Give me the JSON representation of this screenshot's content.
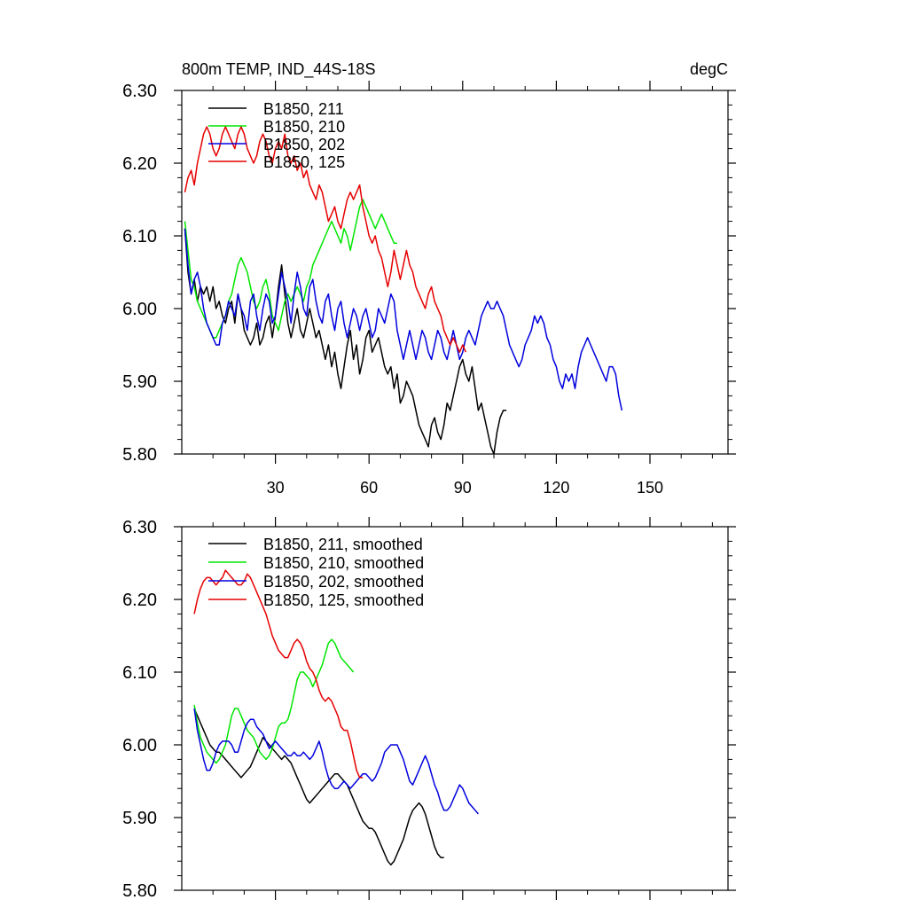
{
  "colors": {
    "black": "#000000",
    "green": "#00e600",
    "blue": "#0000dd",
    "red": "#e60000"
  },
  "chart_data": [
    {
      "type": "line",
      "title": "800m TEMP, IND_44S-18S",
      "units": "degC",
      "xlim": [
        0,
        175
      ],
      "ylim": [
        5.8,
        6.3
      ],
      "xticks": [
        30,
        60,
        90,
        120,
        150
      ],
      "xtick_labels": [
        "30",
        "60",
        "90",
        "120",
        "150"
      ],
      "yticks": [
        5.8,
        5.9,
        6.0,
        6.1,
        6.2,
        6.3
      ],
      "ytick_labels": [
        "5.80",
        "5.90",
        "6.00",
        "6.10",
        "6.20",
        "6.30"
      ],
      "legend_position": "top-left",
      "series": [
        {
          "name": "B1850, 211",
          "color": "black",
          "start": 1,
          "values": [
            6.11,
            6.05,
            6.02,
            6.04,
            6.01,
            6.03,
            6.02,
            6.03,
            6.01,
            6.03,
            6.0,
            6.01,
            5.99,
            5.98,
            6.0,
            6.01,
            5.98,
            6.02,
            6.0,
            5.97,
            5.96,
            5.95,
            5.96,
            5.98,
            5.95,
            5.96,
            5.98,
            5.99,
            5.96,
            5.99,
            6.03,
            6.06,
            6.02,
            5.98,
            5.96,
            5.98,
            6.0,
            5.97,
            5.96,
            5.98,
            6.0,
            5.98,
            5.96,
            5.97,
            5.95,
            5.93,
            5.95,
            5.92,
            5.94,
            5.91,
            5.89,
            5.92,
            5.95,
            5.97,
            5.93,
            5.95,
            5.91,
            5.93,
            5.96,
            5.97,
            5.94,
            5.95,
            5.96,
            5.94,
            5.92,
            5.91,
            5.92,
            5.89,
            5.91,
            5.87,
            5.88,
            5.9,
            5.89,
            5.88,
            5.86,
            5.84,
            5.83,
            5.82,
            5.81,
            5.84,
            5.85,
            5.83,
            5.82,
            5.84,
            5.87,
            5.86,
            5.88,
            5.9,
            5.92,
            5.93,
            5.91,
            5.9,
            5.92,
            5.89,
            5.86,
            5.87,
            5.85,
            5.83,
            5.81,
            5.8,
            5.83,
            5.85,
            5.86,
            5.86
          ]
        },
        {
          "name": "B1850, 210",
          "color": "green",
          "start": 1,
          "values": [
            6.12,
            6.08,
            6.04,
            6.03,
            6.01,
            6.0,
            5.99,
            5.98,
            5.97,
            5.96,
            5.96,
            5.97,
            5.98,
            5.99,
            6.01,
            6.02,
            6.04,
            6.06,
            6.07,
            6.06,
            6.05,
            6.03,
            6.01,
            6.0,
            6.01,
            6.03,
            6.04,
            6.02,
            5.99,
            5.98,
            5.97,
            5.99,
            6.01,
            6.02,
            6.01,
            6.02,
            6.03,
            6.02,
            6.01,
            6.03,
            6.04,
            6.06,
            6.07,
            6.08,
            6.09,
            6.1,
            6.11,
            6.12,
            6.11,
            6.1,
            6.09,
            6.11,
            6.1,
            6.08,
            6.1,
            6.12,
            6.14,
            6.15,
            6.14,
            6.13,
            6.12,
            6.11,
            6.12,
            6.13,
            6.12,
            6.11,
            6.1,
            6.09,
            6.09
          ]
        },
        {
          "name": "B1850, 202",
          "color": "blue",
          "start": 1,
          "values": [
            6.11,
            6.06,
            6.02,
            6.04,
            6.05,
            6.03,
            6.0,
            5.98,
            5.97,
            5.96,
            5.95,
            5.95,
            5.98,
            5.99,
            6.01,
            6.0,
            5.99,
            6.02,
            6.0,
            5.99,
            5.97,
            6.01,
            6.02,
            5.99,
            5.97,
            6.0,
            6.02,
            6.01,
            5.98,
            5.99,
            6.02,
            6.05,
            6.03,
            6.01,
            5.98,
            6.02,
            6.05,
            6.03,
            6.0,
            5.99,
            6.03,
            6.04,
            6.01,
            5.99,
            5.98,
            6.01,
            6.02,
            5.99,
            5.97,
            6.0,
            6.01,
            5.98,
            5.96,
            5.98,
            6.0,
            5.99,
            5.97,
            5.99,
            6.0,
            5.98,
            5.96,
            5.97,
            6.0,
            5.99,
            5.98,
            6.0,
            6.02,
            6.01,
            5.97,
            5.95,
            5.93,
            5.95,
            5.97,
            5.95,
            5.93,
            5.95,
            5.97,
            5.96,
            5.94,
            5.93,
            5.95,
            5.97,
            5.96,
            5.94,
            5.93,
            5.95,
            5.97,
            5.95,
            5.93,
            5.94,
            5.96,
            5.97,
            5.96,
            5.95,
            5.97,
            5.99,
            6.0,
            6.01,
            6.0,
            6.0,
            6.01,
            6.0,
            5.99,
            5.97,
            5.95,
            5.94,
            5.93,
            5.92,
            5.93,
            5.95,
            5.96,
            5.97,
            5.99,
            5.98,
            5.99,
            5.98,
            5.96,
            5.95,
            5.93,
            5.92,
            5.9,
            5.89,
            5.91,
            5.9,
            5.91,
            5.89,
            5.92,
            5.94,
            5.95,
            5.96,
            5.95,
            5.94,
            5.93,
            5.92,
            5.91,
            5.9,
            5.92,
            5.92,
            5.91,
            5.88,
            5.86
          ]
        },
        {
          "name": "B1850, 125",
          "color": "red",
          "start": 1,
          "values": [
            6.16,
            6.18,
            6.19,
            6.17,
            6.2,
            6.22,
            6.24,
            6.25,
            6.24,
            6.22,
            6.21,
            6.22,
            6.24,
            6.25,
            6.24,
            6.23,
            6.22,
            6.24,
            6.25,
            6.24,
            6.22,
            6.21,
            6.2,
            6.21,
            6.23,
            6.24,
            6.23,
            6.21,
            6.2,
            6.22,
            6.23,
            6.22,
            6.24,
            6.21,
            6.2,
            6.21,
            6.19,
            6.2,
            6.18,
            6.19,
            6.17,
            6.16,
            6.15,
            6.17,
            6.16,
            6.14,
            6.12,
            6.13,
            6.14,
            6.12,
            6.11,
            6.13,
            6.15,
            6.16,
            6.15,
            6.16,
            6.17,
            6.14,
            6.12,
            6.1,
            6.09,
            6.1,
            6.08,
            6.07,
            6.05,
            6.03,
            6.05,
            6.08,
            6.06,
            6.04,
            6.06,
            6.08,
            6.06,
            6.05,
            6.03,
            6.02,
            6.01,
            6.0,
            6.02,
            6.03,
            6.01,
            6.0,
            5.99,
            5.97,
            5.96,
            5.95,
            5.96,
            5.95,
            5.94,
            5.95,
            5.94
          ]
        }
      ]
    },
    {
      "type": "line",
      "xlim": [
        0,
        175
      ],
      "ylim": [
        5.8,
        6.3
      ],
      "xticks": [
        30,
        60,
        90,
        120,
        150
      ],
      "yticks": [
        5.8,
        5.9,
        6.0,
        6.1,
        6.2,
        6.3
      ],
      "ytick_labels": [
        "5.80",
        "5.90",
        "6.00",
        "6.10",
        "6.20",
        "6.30"
      ],
      "legend_position": "top-left",
      "series": [
        {
          "name": "B1850, 211, smoothed",
          "color": "black",
          "start": 4,
          "values": [
            6.05,
            6.04,
            6.03,
            6.02,
            6.01,
            6.0,
            5.995,
            5.99,
            5.99,
            5.985,
            5.98,
            5.975,
            5.97,
            5.965,
            5.96,
            5.955,
            5.96,
            5.965,
            5.97,
            5.98,
            5.99,
            6.0,
            6.01,
            6.005,
            6.0,
            5.995,
            5.99,
            5.985,
            5.98,
            5.985,
            5.98,
            5.975,
            5.965,
            5.955,
            5.945,
            5.935,
            5.925,
            5.92,
            5.925,
            5.93,
            5.935,
            5.94,
            5.945,
            5.95,
            5.955,
            5.96,
            5.96,
            5.955,
            5.95,
            5.945,
            5.935,
            5.925,
            5.915,
            5.905,
            5.895,
            5.89,
            5.885,
            5.885,
            5.88,
            5.87,
            5.86,
            5.85,
            5.84,
            5.835,
            5.84,
            5.85,
            5.86,
            5.87,
            5.885,
            5.9,
            5.91,
            5.915,
            5.92,
            5.915,
            5.905,
            5.89,
            5.875,
            5.86,
            5.85,
            5.845,
            5.845
          ]
        },
        {
          "name": "B1850, 210, smoothed",
          "color": "green",
          "start": 4,
          "values": [
            6.055,
            6.03,
            6.01,
            6.0,
            5.99,
            5.985,
            5.98,
            5.975,
            5.98,
            5.99,
            6.0,
            6.02,
            6.04,
            6.05,
            6.05,
            6.04,
            6.03,
            6.02,
            6.015,
            6.01,
            6.0,
            5.99,
            5.985,
            5.98,
            5.985,
            5.995,
            6.01,
            6.025,
            6.03,
            6.03,
            6.035,
            6.05,
            6.07,
            6.09,
            6.1,
            6.1,
            6.095,
            6.09,
            6.08,
            6.09,
            6.1,
            6.11,
            6.125,
            6.14,
            6.145,
            6.14,
            6.13,
            6.12,
            6.115,
            6.11,
            6.105,
            6.1
          ]
        },
        {
          "name": "B1850, 202, smoothed",
          "color": "blue",
          "start": 4,
          "values": [
            6.05,
            6.02,
            6.0,
            5.98,
            5.965,
            5.965,
            5.975,
            5.99,
            6.0,
            6.005,
            6.005,
            6.005,
            6.0,
            5.99,
            5.99,
            6.005,
            6.02,
            6.03,
            6.035,
            6.035,
            6.025,
            6.02,
            6.015,
            6.005,
            5.995,
            6.0,
            6.005,
            6.0,
            5.995,
            5.99,
            5.985,
            5.985,
            5.99,
            5.985,
            5.985,
            5.99,
            5.985,
            5.98,
            5.985,
            5.995,
            6.005,
            5.99,
            5.97,
            5.955,
            5.945,
            5.94,
            5.94,
            5.945,
            5.95,
            5.945,
            5.94,
            5.945,
            5.95,
            5.955,
            5.96,
            5.96,
            5.955,
            5.95,
            5.955,
            5.965,
            5.975,
            5.99,
            5.995,
            6.0,
            6.0,
            6.0,
            5.99,
            5.98,
            5.965,
            5.95,
            5.945,
            5.955,
            5.965,
            5.975,
            5.985,
            5.975,
            5.96,
            5.945,
            5.935,
            5.92,
            5.91,
            5.91,
            5.915,
            5.925,
            5.935,
            5.945,
            5.94,
            5.93,
            5.92,
            5.915,
            5.91,
            5.905
          ]
        },
        {
          "name": "B1850, 125, smoothed",
          "color": "red",
          "start": 4,
          "values": [
            6.18,
            6.2,
            6.215,
            6.225,
            6.23,
            6.23,
            6.225,
            6.22,
            6.225,
            6.23,
            6.24,
            6.235,
            6.23,
            6.225,
            6.22,
            6.22,
            6.225,
            6.235,
            6.23,
            6.22,
            6.21,
            6.2,
            6.19,
            6.18,
            6.165,
            6.15,
            6.14,
            6.13,
            6.125,
            6.12,
            6.12,
            6.13,
            6.14,
            6.145,
            6.14,
            6.13,
            6.115,
            6.105,
            6.1,
            6.09,
            6.075,
            6.065,
            6.06,
            6.065,
            6.06,
            6.05,
            6.04,
            6.025,
            6.02,
            6.02,
            6.005,
            5.985,
            5.965,
            5.955,
            5.955
          ]
        }
      ]
    }
  ]
}
